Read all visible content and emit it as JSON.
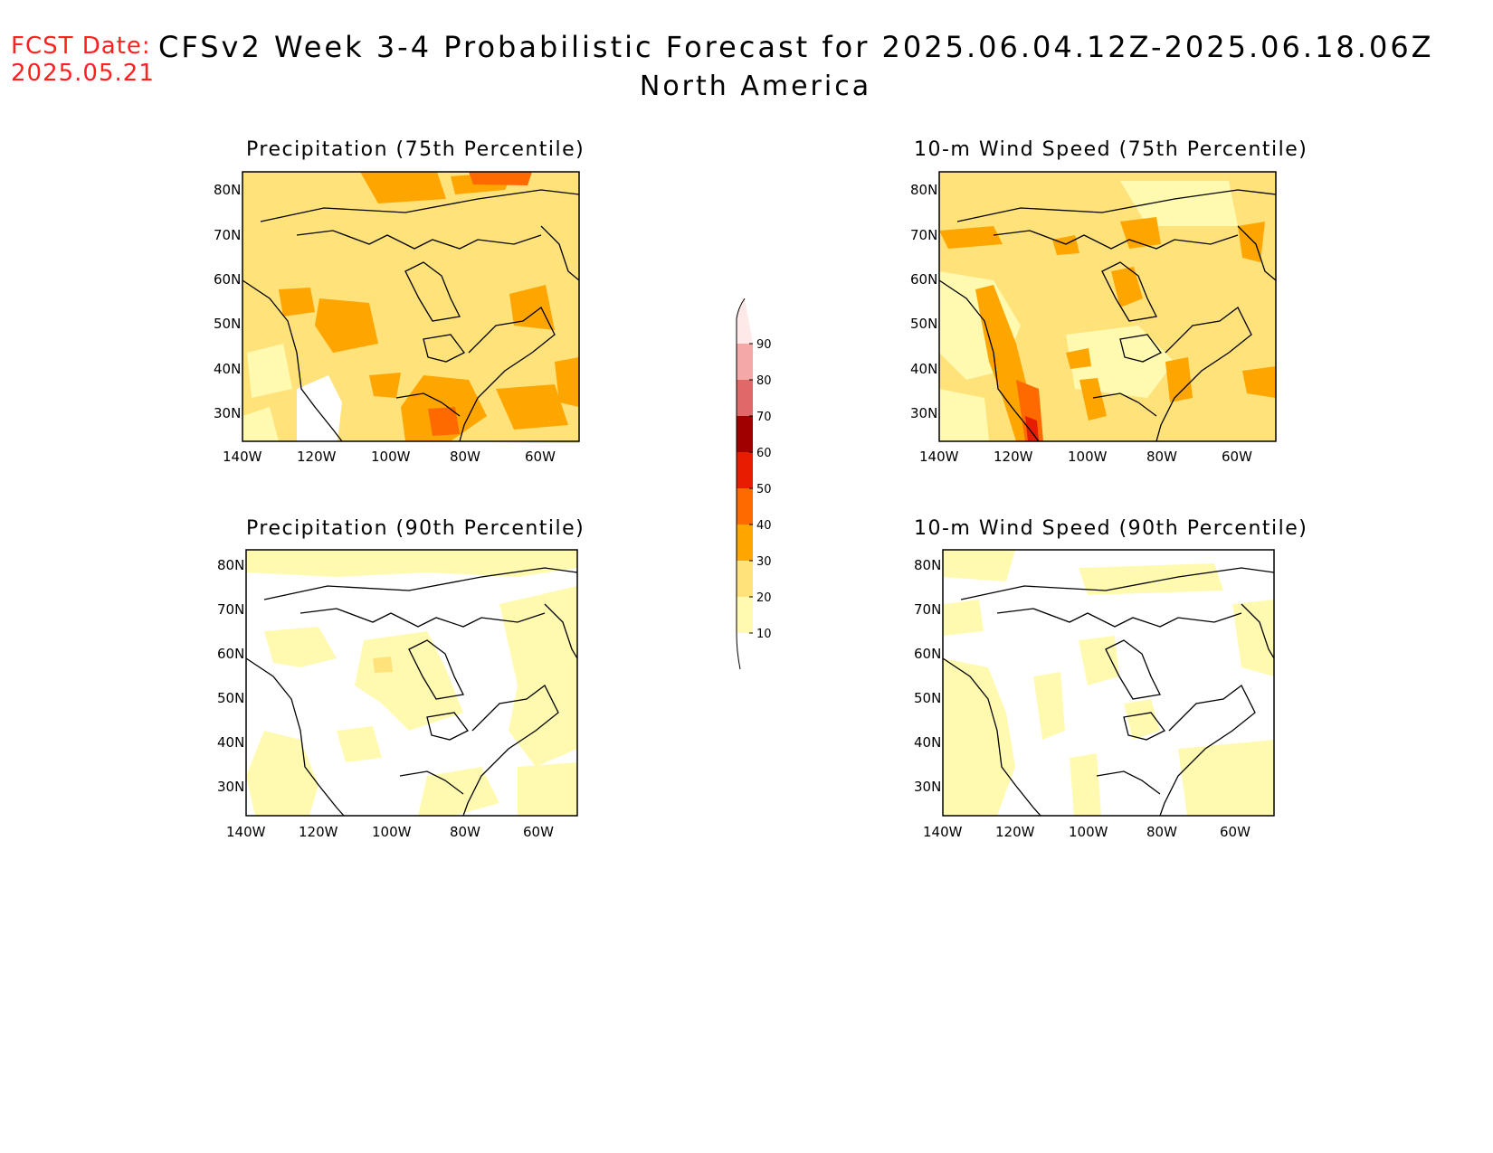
{
  "header": {
    "fcst_label": "FCST Date:",
    "fcst_date": "2025.05.21",
    "title": "CFSv2 Week 3-4 Probabilistic Forecast for 2025.06.04.12Z-2025.06.18.06Z",
    "region": "North America"
  },
  "panels": [
    {
      "id": "precip75",
      "title": "Precipitation (75th Percentile)"
    },
    {
      "id": "wind75",
      "title": "10-m Wind Speed (75th Percentile)"
    },
    {
      "id": "precip90",
      "title": "Precipitation (90th Percentile)"
    },
    {
      "id": "wind90",
      "title": "10-m Wind Speed (90th Percentile)"
    }
  ],
  "axes": {
    "lon_ticks": [
      "140W",
      "120W",
      "100W",
      "80W",
      "60W"
    ],
    "lat_ticks": [
      "80N",
      "70N",
      "60N",
      "50N",
      "40N",
      "30N"
    ]
  },
  "colorbar": {
    "levels": [
      "10",
      "20",
      "30",
      "40",
      "50",
      "60",
      "70",
      "80",
      "90"
    ],
    "colors": [
      "#fffab0",
      "#ffe27a",
      "#ffa500",
      "#ff6a00",
      "#e81c00",
      "#a00000",
      "#e06868",
      "#f4a8a8",
      "#ffe8e8"
    ]
  }
}
